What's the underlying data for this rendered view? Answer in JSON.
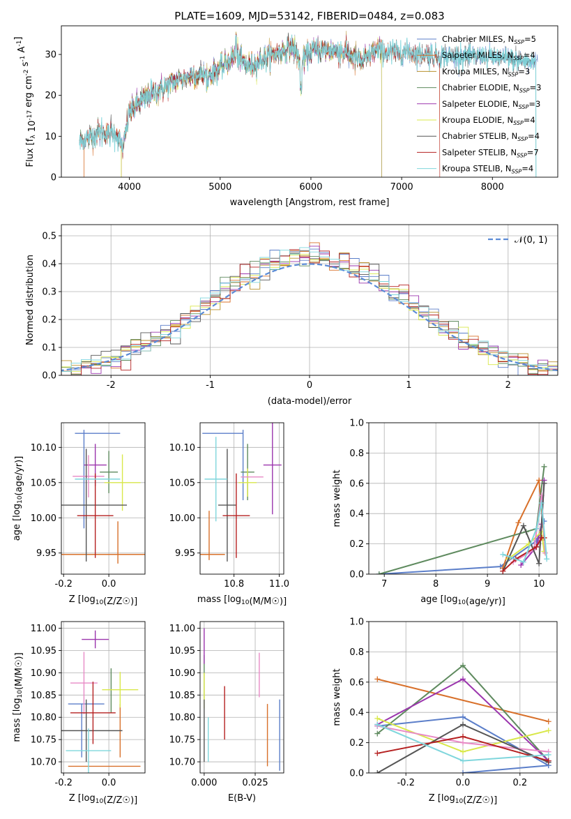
{
  "chart_data": [
    {
      "type": "line",
      "title": "PLATE=1609, MJD=53142, FIBERID=0484, z=0.083",
      "xlabel": "wavelength [Angstrom, rest frame]",
      "ylabel": "Flux [f_λ 10^-17 erg cm^-2 s^-1 A^-1]",
      "xlim": [
        3250,
        8720
      ],
      "ylim": [
        0,
        37
      ],
      "xticks": [
        4000,
        5000,
        6000,
        7000,
        8000
      ],
      "yticks": [
        0,
        10,
        20,
        30
      ],
      "legend_position": "top-right",
      "grid": false,
      "spectrum_shape": {
        "x": [
          3450,
          3550,
          3650,
          3780,
          3850,
          3930,
          3960,
          4000,
          4100,
          4200,
          4300,
          4400,
          4500,
          4700,
          4862,
          5000,
          5175,
          5300,
          5500,
          5700,
          5800,
          5890,
          6000,
          6200,
          6400,
          6563,
          6700,
          6900,
          7100,
          7300,
          7500,
          7700,
          7900,
          8100,
          8300,
          8500
        ],
        "y": [
          9,
          9.5,
          11,
          10.5,
          11,
          7,
          11,
          16,
          18,
          20,
          21,
          22,
          23.5,
          25,
          25,
          26.5,
          30,
          27,
          29,
          31,
          32,
          28,
          31,
          31,
          30.5,
          28,
          31,
          30.5,
          30.5,
          30,
          29.5,
          29.5,
          29.5,
          29,
          28.5,
          28
        ]
      },
      "series": [
        {
          "name": "Chabrier MILES",
          "nssp": "5",
          "color": "#5b7ec9",
          "cut_start": 3450,
          "cut_end": 8720
        },
        {
          "name": "Salpeter MILES",
          "nssp": "4",
          "color": "#d8702a",
          "cut_start": 3500,
          "cut_end": 7420
        },
        {
          "name": "Kroupa MILES",
          "nssp": "3",
          "color": "#b8902d",
          "cut_start": 3910,
          "cut_end": 6780
        },
        {
          "name": "Chabrier ELODIE",
          "nssp": "3",
          "color": "#5e8a5e",
          "cut_start": 3450,
          "cut_end": 6780
        },
        {
          "name": "Salpeter ELODIE",
          "nssp": "3",
          "color": "#9b35ad",
          "cut_start": 3910,
          "cut_end": 6780
        },
        {
          "name": "Kroupa ELODIE",
          "nssp": "4",
          "color": "#d9e84a",
          "cut_start": 3910,
          "cut_end": 6780
        },
        {
          "name": "Chabrier STELIB",
          "nssp": "4",
          "color": "#555555",
          "cut_start": 3450,
          "cut_end": 8480
        },
        {
          "name": "Salpeter STELIB",
          "nssp": "7",
          "color": "#b52020",
          "cut_start": 3450,
          "cut_end": 7420
        },
        {
          "name": "Kroupa STELIB",
          "nssp": "4",
          "color": "#7fd6dc",
          "cut_start": 3450,
          "cut_end": 8480
        }
      ]
    },
    {
      "type": "histogram",
      "xlabel": "(data-model)/error",
      "ylabel": "Normed distribution",
      "xlim": [
        -2.5,
        2.5
      ],
      "ylim": [
        0,
        0.54
      ],
      "xticks": [
        -2,
        -1,
        0,
        1,
        2
      ],
      "yticks": [
        0.0,
        0.1,
        0.2,
        0.3,
        0.4,
        0.5
      ],
      "grid": true,
      "legend_position": "top-right",
      "normal_curve": {
        "label": "𝒩(0, 1)",
        "color": "#5b8bd6"
      },
      "bin_width": 0.1
    },
    {
      "type": "scatter",
      "xlabel": "Z [log10(Z/Z☉)]",
      "ylabel": "age  [log10(age/yr)]",
      "xlim": [
        -0.21,
        0.16
      ],
      "ylim": [
        9.92,
        10.135
      ],
      "xticks": [
        -0.2,
        0.0
      ],
      "yticks": [
        9.95,
        10.0,
        10.05,
        10.1
      ],
      "grid": true,
      "points": [
        {
          "x": -0.05,
          "xerr": 0.1,
          "y": 10.12,
          "yerr": 0.0,
          "color": "#5b7ec9"
        },
        {
          "x": -0.11,
          "xerr": 0.0,
          "y": 10.12,
          "yerr": 0.0,
          "color": "#5b7ec9"
        },
        {
          "x": -0.11,
          "xerr": 0.0,
          "y": 10.055,
          "yerr": 0.07,
          "color": "#5b7ec9"
        },
        {
          "x": 0.04,
          "xerr": 0.0,
          "y": 9.965,
          "yerr": 0.03,
          "color": "#d8702a"
        },
        {
          "x": -0.03,
          "xerr": 0.2,
          "y": 9.948,
          "yerr": 0.0,
          "color": "#d8702a"
        },
        {
          "x": 0.0,
          "xerr": 0.04,
          "y": 10.065,
          "yerr": 0.03,
          "color": "#5e8a5e"
        },
        {
          "x": -0.06,
          "xerr": 0.05,
          "y": 10.075,
          "yerr": 0.03,
          "color": "#9b35ad"
        },
        {
          "x": 0.06,
          "xerr": 0.08,
          "y": 10.05,
          "yerr": 0.04,
          "color": "#d9e84a"
        },
        {
          "x": -0.09,
          "xerr": 0.07,
          "y": 10.059,
          "yerr": 0.03,
          "color": "#e88ac6"
        },
        {
          "x": -0.1,
          "xerr": 0.18,
          "y": 10.018,
          "yerr": 0.08,
          "color": "#555555"
        },
        {
          "x": -0.06,
          "xerr": 0.08,
          "y": 10.003,
          "yerr": 0.06,
          "color": "#b52020"
        },
        {
          "x": -0.05,
          "xerr": 0.1,
          "y": 10.055,
          "yerr": 0.0,
          "color": "#7fd6dc"
        }
      ]
    },
    {
      "type": "scatter",
      "xlabel": "mass [log10(M/M☉)]",
      "ylabel": "",
      "xlim": [
        10.65,
        11.02
      ],
      "ylim": [
        9.92,
        10.135
      ],
      "xticks": [
        10.8,
        11.0
      ],
      "yticks": [
        9.95,
        10.0,
        10.05,
        10.1
      ],
      "grid": true,
      "points": [
        {
          "x": 10.75,
          "xerr": 0.09,
          "y": 10.12,
          "yerr": 0.0,
          "color": "#5b7ec9"
        },
        {
          "x": 10.84,
          "xerr": 0.0,
          "y": 10.075,
          "yerr": 0.05,
          "color": "#5b7ec9"
        },
        {
          "x": 10.69,
          "xerr": 0.0,
          "y": 9.975,
          "yerr": 0.035,
          "color": "#d8702a"
        },
        {
          "x": 10.7,
          "xerr": 0.06,
          "y": 9.948,
          "yerr": 0.0,
          "color": "#d8702a"
        },
        {
          "x": 10.86,
          "xerr": 0.03,
          "y": 10.065,
          "yerr": 0.04,
          "color": "#5e8a5e"
        },
        {
          "x": 10.97,
          "xerr": 0.04,
          "y": 10.075,
          "yerr": 0.07,
          "color": "#9b35ad"
        },
        {
          "x": 10.86,
          "xerr": 0.04,
          "y": 10.05,
          "yerr": 0.02,
          "color": "#d9e84a"
        },
        {
          "x": 10.88,
          "xerr": 0.05,
          "y": 10.058,
          "yerr": 0.0,
          "color": "#e88ac6"
        },
        {
          "x": 10.77,
          "xerr": 0.04,
          "y": 10.018,
          "yerr": 0.08,
          "color": "#555555"
        },
        {
          "x": 10.81,
          "xerr": 0.06,
          "y": 10.003,
          "yerr": 0.06,
          "color": "#b52020"
        },
        {
          "x": 10.72,
          "xerr": 0.05,
          "y": 10.055,
          "yerr": 0.06,
          "color": "#7fd6dc"
        }
      ]
    },
    {
      "type": "line",
      "xlabel": "age  [log10(age/yr)]",
      "ylabel": "mass weight",
      "xlim": [
        6.7,
        10.35
      ],
      "ylim": [
        0,
        1
      ],
      "xticks": [
        7,
        8,
        9,
        10
      ],
      "yticks": [
        0.0,
        0.2,
        0.4,
        0.6,
        0.8,
        1.0
      ],
      "grid": true,
      "series": [
        {
          "color": "#5b7ec9",
          "x": [
            6.9,
            9.25,
            9.95,
            10.1
          ],
          "y": [
            0.0,
            0.05,
            0.22,
            0.35
          ]
        },
        {
          "color": "#d8702a",
          "x": [
            9.3,
            9.6,
            10.0,
            10.1
          ],
          "y": [
            0.04,
            0.34,
            0.62,
            0.24
          ]
        },
        {
          "color": "#5e8a5e",
          "x": [
            6.9,
            9.75,
            9.95,
            10.1
          ],
          "y": [
            0.0,
            0.28,
            0.3,
            0.71
          ]
        },
        {
          "color": "#9b35ad",
          "x": [
            9.65,
            9.95,
            10.05,
            10.1
          ],
          "y": [
            0.06,
            0.18,
            0.33,
            0.62
          ]
        },
        {
          "color": "#d9e84a",
          "x": [
            9.4,
            9.8,
            10.05,
            10.1
          ],
          "y": [
            0.1,
            0.2,
            0.28,
            0.15
          ]
        },
        {
          "color": "#e88ac6",
          "x": [
            9.5,
            9.9,
            10.05,
            10.12
          ],
          "y": [
            0.08,
            0.16,
            0.52,
            0.14
          ]
        },
        {
          "color": "#555555",
          "x": [
            9.3,
            9.7,
            10.0,
            10.1
          ],
          "y": [
            0.02,
            0.32,
            0.07,
            0.6
          ]
        },
        {
          "color": "#b52020",
          "x": [
            9.3,
            9.55,
            9.95,
            10.05,
            10.1
          ],
          "y": [
            0.02,
            0.1,
            0.18,
            0.24,
            0.24
          ]
        },
        {
          "color": "#7fd6dc",
          "x": [
            9.3,
            9.7,
            9.95,
            10.05,
            10.15
          ],
          "y": [
            0.13,
            0.08,
            0.3,
            0.47,
            0.1
          ]
        }
      ]
    },
    {
      "type": "scatter",
      "xlabel": "Z [log10(Z/Z☉)]",
      "ylabel": "mass [log10(M/M☉)]",
      "xlim": [
        -0.21,
        0.16
      ],
      "ylim": [
        10.675,
        11.015
      ],
      "xticks": [
        -0.2,
        0.0
      ],
      "yticks": [
        10.7,
        10.75,
        10.8,
        10.85,
        10.9,
        10.95,
        11.0
      ],
      "grid": true,
      "points": [
        {
          "x": -0.1,
          "xerr": 0.08,
          "y": 10.83,
          "yerr": 0.0,
          "color": "#5b7ec9"
        },
        {
          "x": -0.12,
          "xerr": 0.0,
          "y": 10.77,
          "yerr": 0.06,
          "color": "#5b7ec9"
        },
        {
          "x": 0.05,
          "xerr": 0.0,
          "y": 10.77,
          "yerr": 0.06,
          "color": "#d8702a"
        },
        {
          "x": -0.02,
          "xerr": 0.16,
          "y": 10.69,
          "yerr": 0.0,
          "color": "#d8702a"
        },
        {
          "x": 0.01,
          "xerr": 0.0,
          "y": 10.86,
          "yerr": 0.05,
          "color": "#5e8a5e"
        },
        {
          "x": -0.06,
          "xerr": 0.06,
          "y": 10.975,
          "yerr": 0.02,
          "color": "#9b35ad"
        },
        {
          "x": 0.05,
          "xerr": 0.08,
          "y": 10.862,
          "yerr": 0.04,
          "color": "#d9e84a"
        },
        {
          "x": -0.11,
          "xerr": 0.06,
          "y": 10.877,
          "yerr": 0.07,
          "color": "#e88ac6"
        },
        {
          "x": -0.1,
          "xerr": 0.16,
          "y": 10.77,
          "yerr": 0.07,
          "color": "#555555"
        },
        {
          "x": -0.07,
          "xerr": 0.1,
          "y": 10.81,
          "yerr": 0.07,
          "color": "#b52020"
        },
        {
          "x": -0.09,
          "xerr": 0.1,
          "y": 10.725,
          "yerr": 0.05,
          "color": "#7fd6dc"
        }
      ]
    },
    {
      "type": "scatter",
      "xlabel": "E(B-V)",
      "ylabel": "",
      "xlim": [
        -0.002,
        0.039
      ],
      "ylim": [
        10.675,
        11.015
      ],
      "xticks": [
        0.0,
        0.025
      ],
      "yticks": [
        10.7,
        10.75,
        10.8,
        10.85,
        10.9,
        10.95,
        11.0
      ],
      "grid": true,
      "points": [
        {
          "x": 0.037,
          "xerr": 0.0,
          "y": 10.76,
          "yerr": 0.08,
          "color": "#5b7ec9"
        },
        {
          "x": 0.031,
          "xerr": 0.0,
          "y": 10.76,
          "yerr": 0.07,
          "color": "#d8702a"
        },
        {
          "x": 0.0,
          "xerr": 0.0,
          "y": 10.89,
          "yerr": 0.05,
          "color": "#5e8a5e"
        },
        {
          "x": 0.0,
          "xerr": 0.0,
          "y": 10.96,
          "yerr": 0.04,
          "color": "#9b35ad"
        },
        {
          "x": 0.0,
          "xerr": 0.0,
          "y": 10.86,
          "yerr": 0.04,
          "color": "#d9e84a"
        },
        {
          "x": 0.027,
          "xerr": 0.0,
          "y": 10.895,
          "yerr": 0.05,
          "color": "#e88ac6"
        },
        {
          "x": 0.0,
          "xerr": 0.0,
          "y": 10.77,
          "yerr": 0.07,
          "color": "#555555"
        },
        {
          "x": 0.01,
          "xerr": 0.0,
          "y": 10.81,
          "yerr": 0.06,
          "color": "#b52020"
        },
        {
          "x": 0.002,
          "xerr": 0.0,
          "y": 10.75,
          "yerr": 0.05,
          "color": "#7fd6dc"
        }
      ]
    },
    {
      "type": "line",
      "xlabel": "Z [log10(Z/Z☉)]",
      "ylabel": "mass weight",
      "xlim": [
        -0.33,
        0.33
      ],
      "ylim": [
        0,
        1
      ],
      "xticks": [
        -0.2,
        0.0,
        0.2
      ],
      "yticks": [
        0.0,
        0.2,
        0.4,
        0.6,
        0.8,
        1.0
      ],
      "grid": true,
      "series": [
        {
          "color": "#5b7ec9",
          "x": [
            -0.3,
            0.0,
            0.3
          ],
          "y": [
            0.31,
            0.37,
            0.05
          ]
        },
        {
          "color": "#5b7ec9",
          "x": [
            0.0,
            0.3
          ],
          "y": [
            0.0,
            0.05
          ]
        },
        {
          "color": "#d8702a",
          "x": [
            -0.3,
            0.3
          ],
          "y": [
            0.62,
            0.34
          ]
        },
        {
          "color": "#5e8a5e",
          "x": [
            -0.3,
            0.0,
            0.3
          ],
          "y": [
            0.26,
            0.71,
            0.08
          ]
        },
        {
          "color": "#9b35ad",
          "x": [
            -0.3,
            0.0,
            0.3
          ],
          "y": [
            0.32,
            0.62,
            0.08
          ]
        },
        {
          "color": "#d9e84a",
          "x": [
            -0.3,
            0.0,
            0.3
          ],
          "y": [
            0.36,
            0.14,
            0.28
          ]
        },
        {
          "color": "#e88ac6",
          "x": [
            -0.3,
            0.0,
            0.3
          ],
          "y": [
            0.31,
            0.2,
            0.14
          ]
        },
        {
          "color": "#555555",
          "x": [
            -0.3,
            0.0,
            0.3
          ],
          "y": [
            0.0,
            0.32,
            0.07
          ]
        },
        {
          "color": "#b52020",
          "x": [
            -0.3,
            0.0,
            0.3
          ],
          "y": [
            0.13,
            0.24,
            0.08
          ]
        },
        {
          "color": "#7fd6dc",
          "x": [
            -0.3,
            0.0,
            0.3
          ],
          "y": [
            0.32,
            0.08,
            0.12
          ]
        }
      ]
    }
  ]
}
